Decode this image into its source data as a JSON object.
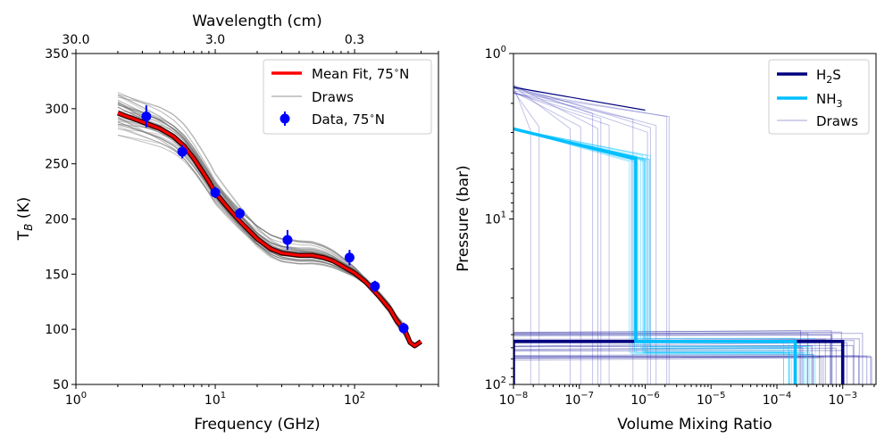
{
  "chart_data": [
    {
      "type": "line",
      "panel": "left",
      "xlabel": "Frequency (GHz)",
      "ylabel_main": "T",
      "ylabel_sub": "B",
      "ylabel_rest": " (K)",
      "top_xlabel": "Wavelength (cm)",
      "xscale": "log",
      "xlim": [
        1,
        400
      ],
      "ylim": [
        50,
        350
      ],
      "xticks": [
        {
          "value": 1,
          "base": "10",
          "exp": "0"
        },
        {
          "value": 10,
          "base": "10",
          "exp": "1"
        },
        {
          "value": 100,
          "base": "10",
          "exp": "2"
        }
      ],
      "yticks": [
        50,
        100,
        150,
        200,
        250,
        300,
        350
      ],
      "top_ticks": [
        {
          "freq": 1,
          "label": "30.0"
        },
        {
          "freq": 10,
          "label": "3.0"
        },
        {
          "freq": 100,
          "label": "0.3"
        }
      ],
      "legend": [
        {
          "label": "Mean Fit, 75$^\\circ$N",
          "text": "Mean Fit, 75",
          "deg": "∘",
          "tail": "N",
          "color": "#ff0000",
          "kind": "line"
        },
        {
          "label": "Draws",
          "text": "Draws",
          "color": "#aaaaaa",
          "kind": "thin"
        },
        {
          "label": "Data, 75$^\\circ$N",
          "text": "Data, 75",
          "deg": "∘",
          "tail": "N",
          "color": "#0000ff",
          "kind": "marker"
        }
      ],
      "mean_fit": {
        "x": [
          2,
          3,
          4,
          5,
          6,
          7,
          8,
          9,
          10,
          12,
          15,
          20,
          25,
          30,
          40,
          50,
          60,
          70,
          80,
          100,
          120,
          150,
          180,
          200,
          230,
          250,
          270,
          300
        ],
        "y": [
          296,
          288,
          282,
          275,
          266,
          255,
          244,
          234,
          224,
          212,
          198,
          182,
          173,
          169,
          167,
          167,
          165,
          162,
          158,
          151,
          143,
          130,
          118,
          108,
          99,
          88,
          85,
          89
        ]
      },
      "data_points": [
        {
          "x": 3.2,
          "y": 293,
          "err": 10
        },
        {
          "x": 5.8,
          "y": 261,
          "err": 6
        },
        {
          "x": 10,
          "y": 224,
          "err": 5
        },
        {
          "x": 15,
          "y": 205,
          "err": 5
        },
        {
          "x": 33,
          "y": 181,
          "err": 9
        },
        {
          "x": 92,
          "y": 165,
          "err": 7
        },
        {
          "x": 140,
          "y": 139,
          "err": 5
        },
        {
          "x": 225,
          "y": 101,
          "err": 5
        }
      ],
      "draws_count": 40
    },
    {
      "type": "line",
      "panel": "right",
      "xlabel": "Volume Mixing Ratio",
      "ylabel": "Pressure (bar)",
      "xscale": "log",
      "yscale": "log",
      "y_inverted": true,
      "xlim": [
        1e-08,
        0.0032
      ],
      "ylim": [
        100,
        1
      ],
      "xticks": [
        {
          "value": 1e-08,
          "base": "10",
          "exp": "−8"
        },
        {
          "value": 1e-07,
          "base": "10",
          "exp": "−7"
        },
        {
          "value": 1e-06,
          "base": "10",
          "exp": "−6"
        },
        {
          "value": 1e-05,
          "base": "10",
          "exp": "−5"
        },
        {
          "value": 0.0001,
          "base": "10",
          "exp": "−4"
        },
        {
          "value": 0.001,
          "base": "10",
          "exp": "−3"
        }
      ],
      "yticks": [
        {
          "value": 1,
          "base": "10",
          "exp": "0"
        },
        {
          "value": 10,
          "base": "10",
          "exp": "1"
        },
        {
          "value": 100,
          "base": "10",
          "exp": "2"
        }
      ],
      "legend": [
        {
          "text": "H",
          "sub": "2",
          "tail": "S",
          "color": "#00007f",
          "kind": "line"
        },
        {
          "text": "NH",
          "sub": "3",
          "tail": "",
          "color": "#00bfff",
          "kind": "line"
        },
        {
          "text": "Draws",
          "sub": "",
          "tail": "",
          "color": "#6a6ac0",
          "kind": "thin"
        }
      ],
      "series": [
        {
          "name": "H2S",
          "color": "#00007f",
          "x": [
            1e-08,
            1e-08,
            7.5e-07,
            0.001,
            0.001
          ],
          "y": [
            100,
            55,
            55,
            55,
            100
          ]
        },
        {
          "name": "NH3",
          "color": "#00bfff",
          "x": [
            1e-08,
            6.5e-07,
            7.2e-07,
            7.2e-07,
            0.00019,
            0.00019
          ],
          "y": [
            2.85,
            4.3,
            4.3,
            55,
            55,
            100
          ]
        },
        {
          "name": "H2S_upper_draw",
          "color": "#00007f",
          "x": [
            1e-08,
            1e-06
          ],
          "y": [
            1.6,
            2.2
          ]
        }
      ]
    }
  ]
}
